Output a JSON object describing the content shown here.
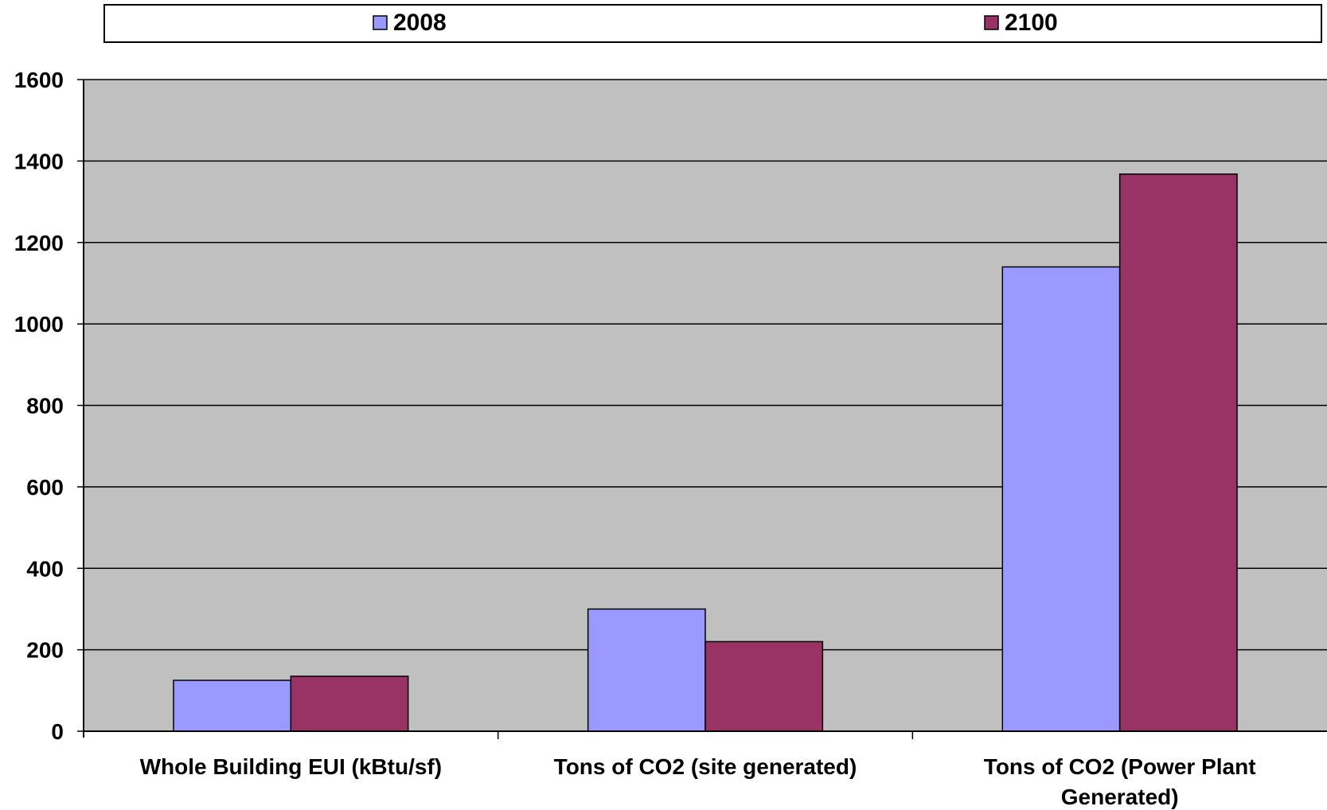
{
  "chart_data": {
    "type": "bar",
    "categories": [
      [
        "Whole Building EUI (kBtu/sf)"
      ],
      [
        "Tons of CO2 (site generated)"
      ],
      [
        "Tons of CO2 (Power Plant",
        "Generated)"
      ]
    ],
    "series": [
      {
        "name": "2008",
        "values": [
          125,
          300,
          1140
        ],
        "color": "#9999ff"
      },
      {
        "name": "2100",
        "values": [
          135,
          220,
          1368
        ],
        "color": "#993366"
      }
    ],
    "title": "",
    "xlabel": "",
    "ylabel": "",
    "ylim": [
      0,
      1600
    ],
    "yticks": [
      "0",
      "200",
      "400",
      "600",
      "800",
      "1000",
      "1200",
      "1400",
      "1600"
    ],
    "grid": true,
    "legend_position": "top",
    "plot_background": "#c0c0c0"
  }
}
